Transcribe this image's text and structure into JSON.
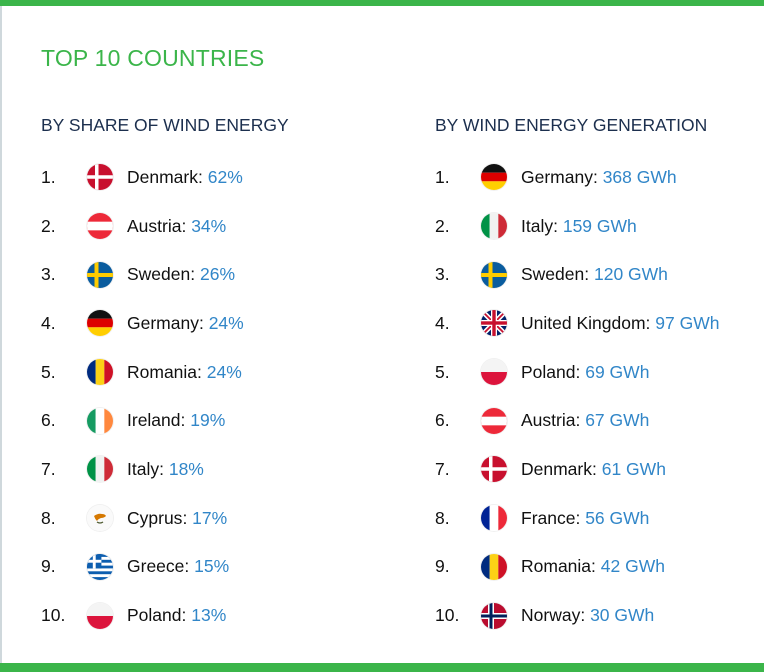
{
  "title": "TOP 10 COUNTRIES",
  "left": {
    "heading": "BY SHARE OF WIND ENERGY",
    "items": [
      {
        "rank": "1.",
        "country": "Denmark",
        "value": "62%",
        "flag": "denmark-flag-icon"
      },
      {
        "rank": "2.",
        "country": "Austria",
        "value": "34%",
        "flag": "austria-flag-icon"
      },
      {
        "rank": "3.",
        "country": "Sweden",
        "value": "26%",
        "flag": "sweden-flag-icon"
      },
      {
        "rank": "4.",
        "country": "Germany",
        "value": "24%",
        "flag": "germany-flag-icon"
      },
      {
        "rank": "5.",
        "country": "Romania",
        "value": "24%",
        "flag": "romania-flag-icon"
      },
      {
        "rank": "6.",
        "country": "Ireland",
        "value": "19%",
        "flag": "ireland-flag-icon"
      },
      {
        "rank": "7.",
        "country": "Italy",
        "value": "18%",
        "flag": "italy-flag-icon"
      },
      {
        "rank": "8.",
        "country": "Cyprus",
        "value": "17%",
        "flag": "cyprus-flag-icon"
      },
      {
        "rank": "9.",
        "country": "Greece",
        "value": "15%",
        "flag": "greece-flag-icon"
      },
      {
        "rank": "10.",
        "country": "Poland",
        "value": "13%",
        "flag": "poland-flag-icon"
      }
    ]
  },
  "right": {
    "heading": "BY WIND ENERGY GENERATION",
    "items": [
      {
        "rank": "1.",
        "country": "Germany",
        "value": "368 GWh",
        "flag": "germany-flag-icon"
      },
      {
        "rank": "2.",
        "country": "Italy",
        "value": "159 GWh",
        "flag": "italy-flag-icon"
      },
      {
        "rank": "3.",
        "country": "Sweden",
        "value": "120 GWh",
        "flag": "sweden-flag-icon"
      },
      {
        "rank": "4.",
        "country": "United Kingdom",
        "value": "97 GWh",
        "flag": "uk-flag-icon"
      },
      {
        "rank": "5.",
        "country": "Poland",
        "value": "69 GWh",
        "flag": "poland-flag-icon"
      },
      {
        "rank": "6.",
        "country": "Austria",
        "value": "67 GWh",
        "flag": "austria-flag-icon"
      },
      {
        "rank": "7.",
        "country": "Denmark",
        "value": "61 GWh",
        "flag": "denmark-flag-icon"
      },
      {
        "rank": "8.",
        "country": "France",
        "value": "56 GWh",
        "flag": "france-flag-icon"
      },
      {
        "rank": "9.",
        "country": "Romania",
        "value": "42 GWh",
        "flag": "romania-flag-icon"
      },
      {
        "rank": "10.",
        "country": "Norway",
        "value": "30 GWh",
        "flag": "norway-flag-icon"
      }
    ]
  },
  "colors": {
    "accent_green": "#3bb54a",
    "heading_navy": "#1c2f4e",
    "value_blue": "#3186c8"
  }
}
